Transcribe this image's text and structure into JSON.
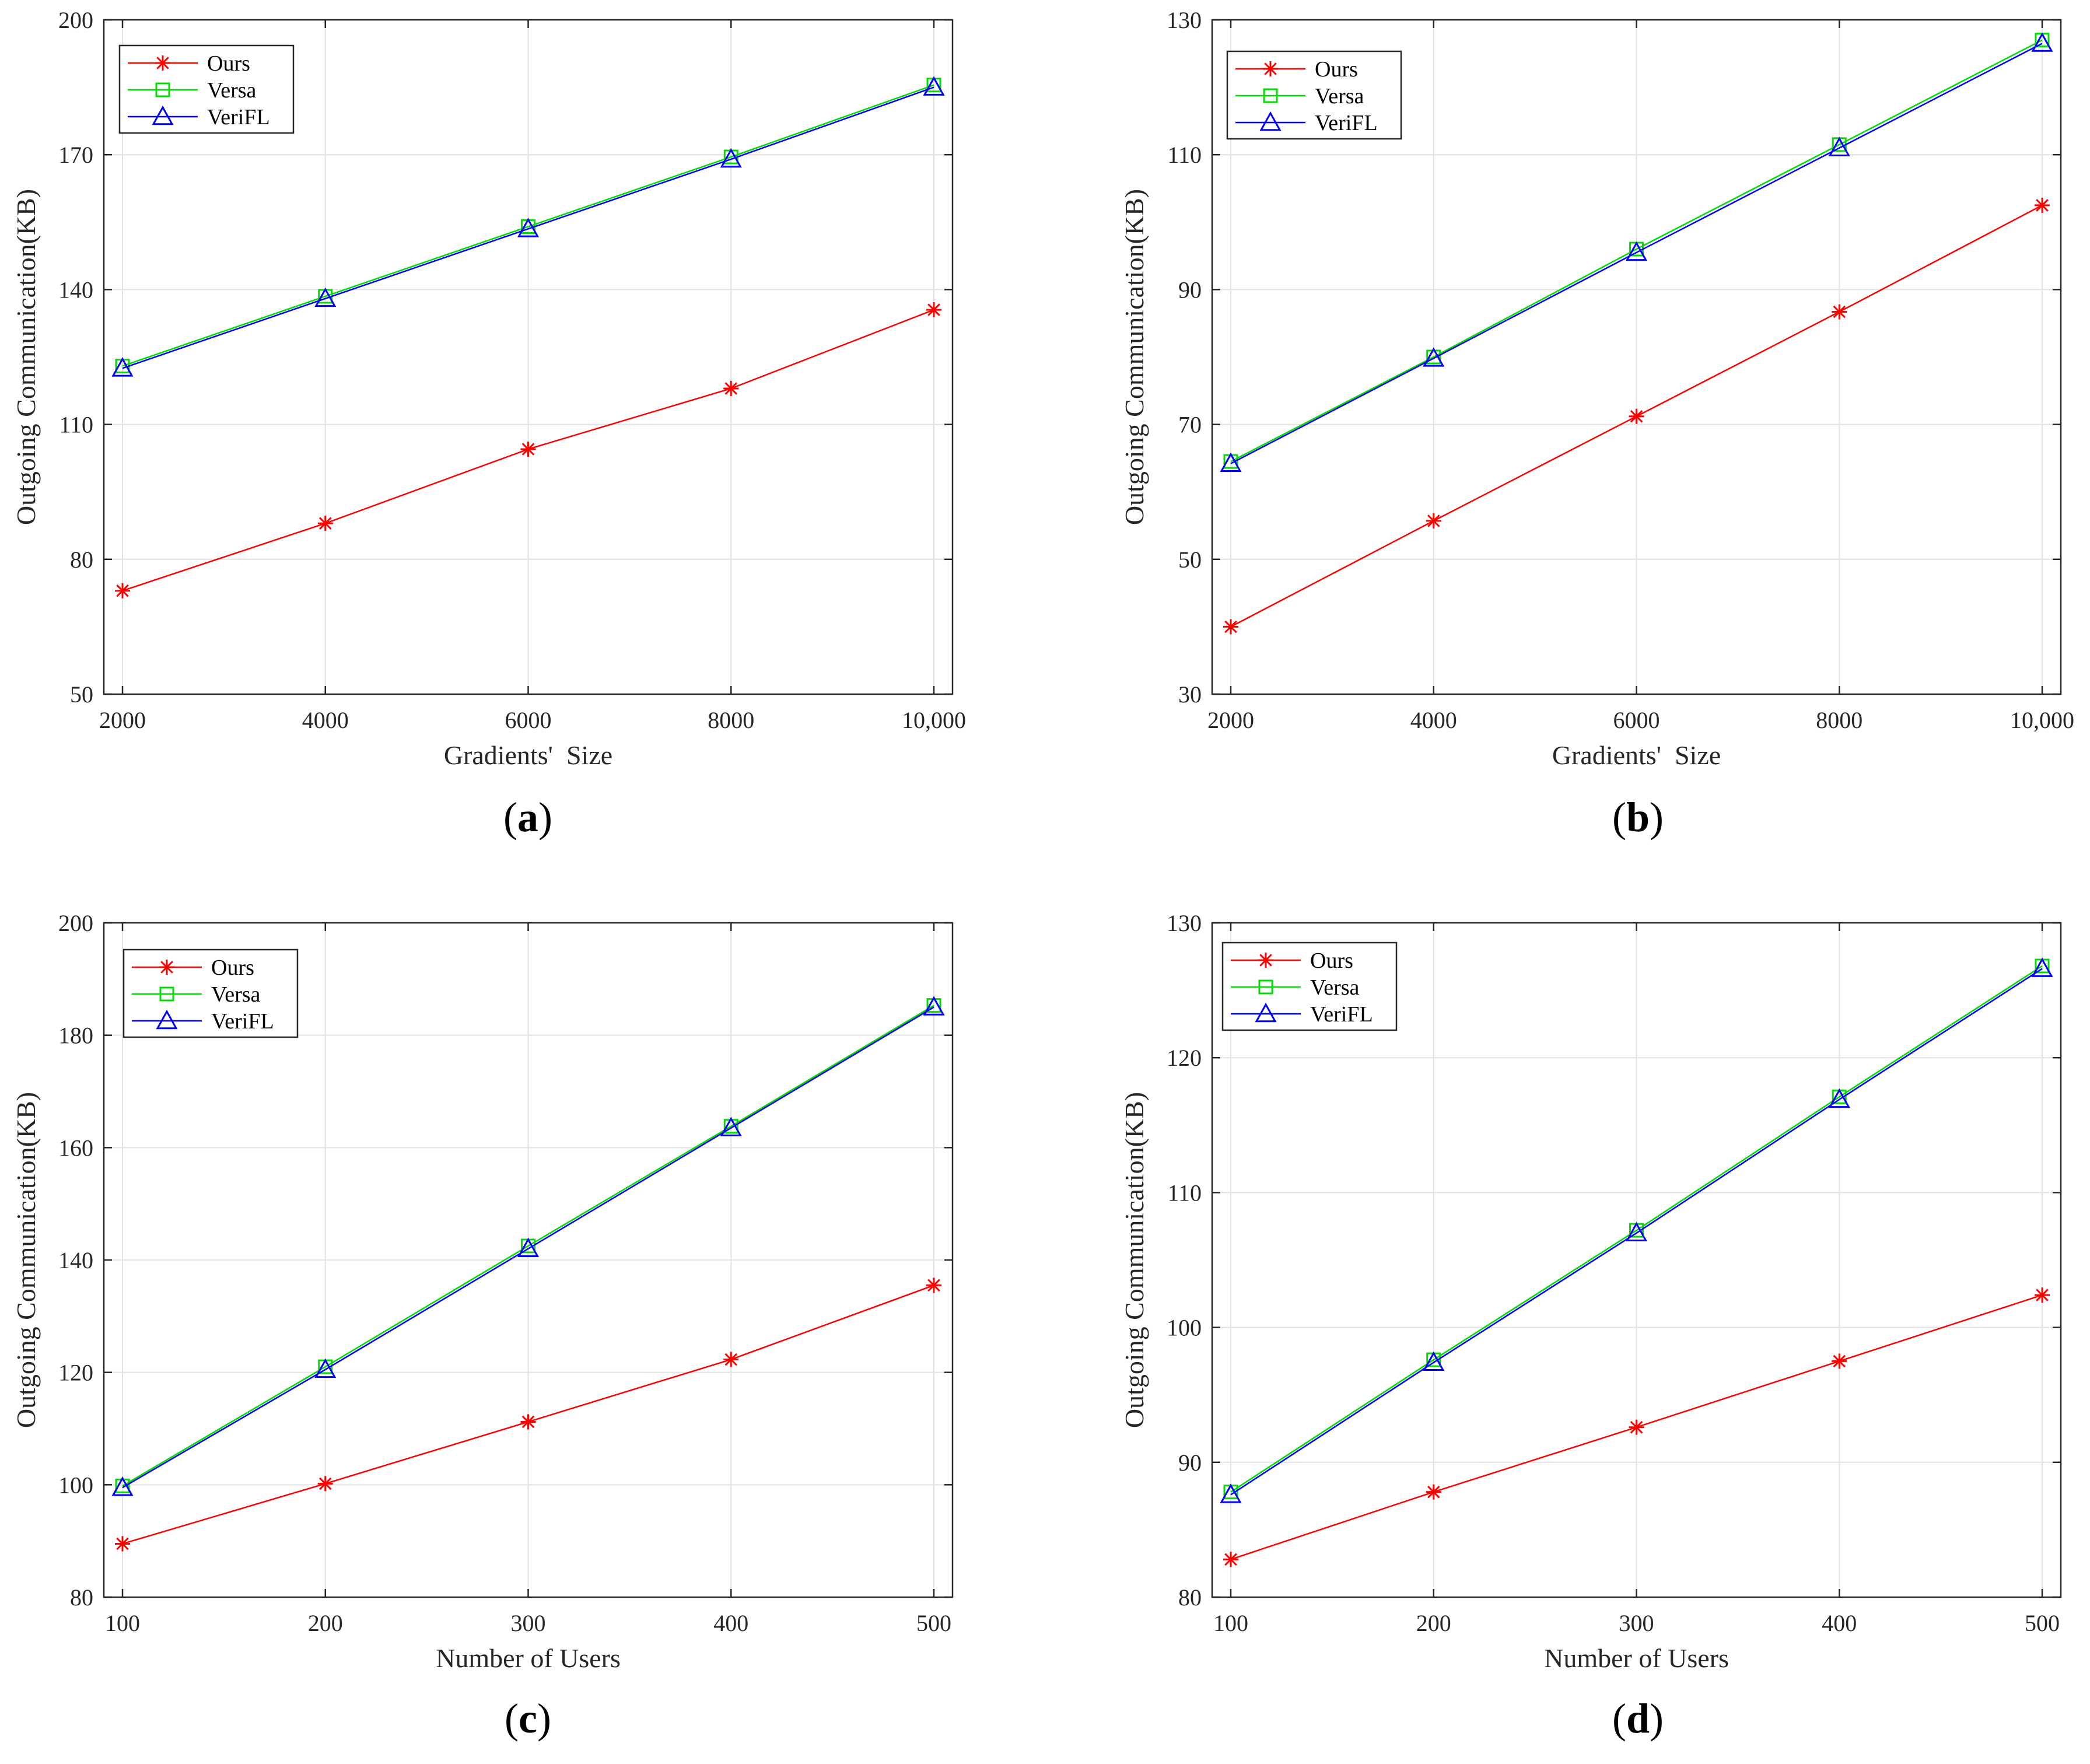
{
  "figure": {
    "panels": [
      "(a)",
      "(b)",
      "(c)",
      "(d)"
    ]
  },
  "colors": {
    "ours": "#ff0000",
    "versa": "#00dd00",
    "verifl": "#0000ff",
    "grid": "#e3e3e3",
    "axis": "#262626"
  },
  "chart_data": [
    {
      "type": "line",
      "panel": "(a)",
      "categories": [
        "2000",
        "4000",
        "6000",
        "8000",
        "10,000"
      ],
      "xlabel": "Gradients'  Size",
      "ylabel": "Outgoing Communication(KB)",
      "ylim": [
        50,
        200
      ],
      "yticks": [
        50,
        80,
        110,
        140,
        170,
        200
      ],
      "grid": true,
      "legend": "top-left",
      "series": [
        {
          "name": "Ours",
          "marker": "asterisk",
          "values": [
            73,
            88,
            104.5,
            118,
            135.5
          ]
        },
        {
          "name": "Versa",
          "marker": "square",
          "values": [
            123,
            138.5,
            154,
            169.5,
            185.5
          ]
        },
        {
          "name": "VeriFL",
          "marker": "triangle",
          "values": [
            122.5,
            138,
            153.5,
            169,
            185
          ]
        }
      ]
    },
    {
      "type": "line",
      "panel": "(b)",
      "categories": [
        "2000",
        "4000",
        "6000",
        "8000",
        "10,000"
      ],
      "xlabel": "Gradients'  Size",
      "ylabel": "Outgoing Communication(KB)",
      "ylim": [
        30,
        130
      ],
      "yticks": [
        30,
        50,
        70,
        90,
        110,
        130
      ],
      "grid": true,
      "legend": "top-left",
      "series": [
        {
          "name": "Ours",
          "marker": "asterisk",
          "values": [
            40,
            55.7,
            71.2,
            86.7,
            102.5
          ]
        },
        {
          "name": "Versa",
          "marker": "square",
          "values": [
            64.5,
            80,
            96,
            111.5,
            127
          ]
        },
        {
          "name": "VeriFL",
          "marker": "triangle",
          "values": [
            64.2,
            79.8,
            95.5,
            111,
            126.5
          ]
        }
      ]
    },
    {
      "type": "line",
      "panel": "(c)",
      "categories": [
        "100",
        "200",
        "300",
        "400",
        "500"
      ],
      "xlabel": "Number of Users",
      "ylabel": "Outgoing Communication(KB)",
      "ylim": [
        80,
        200
      ],
      "yticks": [
        80,
        100,
        120,
        140,
        160,
        180,
        200
      ],
      "grid": true,
      "legend": "top-left",
      "series": [
        {
          "name": "Ours",
          "marker": "asterisk",
          "values": [
            89.5,
            100.2,
            111.2,
            122.3,
            135.5
          ]
        },
        {
          "name": "Versa",
          "marker": "square",
          "values": [
            99.8,
            121,
            142.5,
            163.8,
            185.3
          ]
        },
        {
          "name": "VeriFL",
          "marker": "triangle",
          "values": [
            99.5,
            120.5,
            142,
            163.5,
            185
          ]
        }
      ]
    },
    {
      "type": "line",
      "panel": "(d)",
      "categories": [
        "100",
        "200",
        "300",
        "400",
        "500"
      ],
      "xlabel": "Number of Users",
      "ylabel": "Outgoing Communication(KB)",
      "ylim": [
        80,
        130
      ],
      "yticks": [
        80,
        90,
        100,
        110,
        120,
        130
      ],
      "grid": true,
      "legend": "top-left",
      "series": [
        {
          "name": "Ours",
          "marker": "asterisk",
          "values": [
            82.8,
            87.8,
            92.6,
            97.5,
            102.4
          ]
        },
        {
          "name": "Versa",
          "marker": "square",
          "values": [
            87.8,
            97.6,
            107.2,
            117.1,
            126.8
          ]
        },
        {
          "name": "VeriFL",
          "marker": "triangle",
          "values": [
            87.6,
            97.4,
            107,
            116.9,
            126.6
          ]
        }
      ]
    }
  ]
}
